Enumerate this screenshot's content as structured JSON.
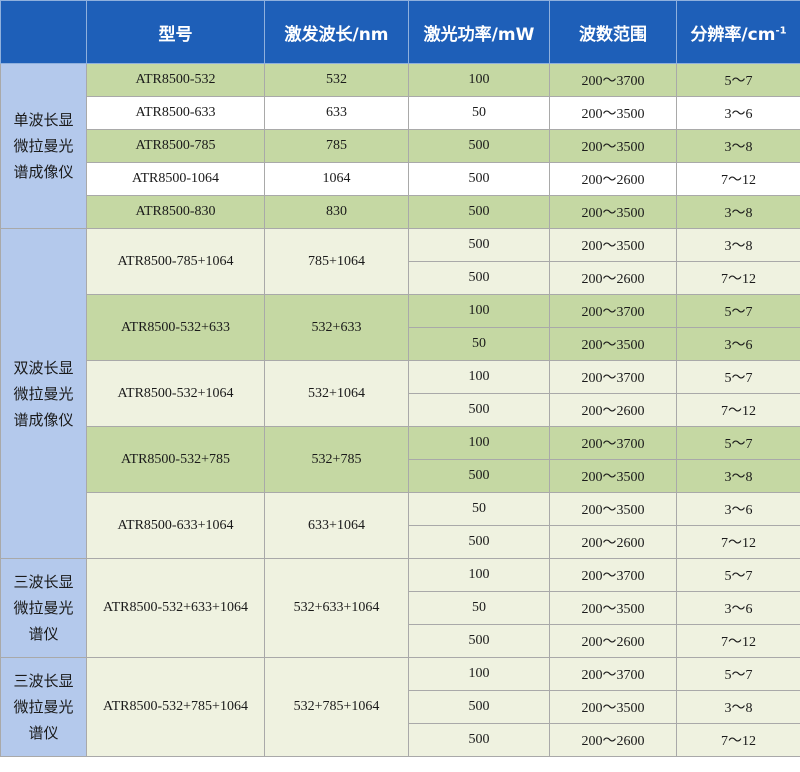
{
  "header": {
    "model": "型号",
    "wavelength": "激发波长/nm",
    "power": "激光功率/mW",
    "range": "波数范围",
    "resolution": "分辨率/cm",
    "resolution_sup": "-1"
  },
  "categories": {
    "single": "单波长显\n微拉曼光\n谱成像仪",
    "dual": "双波长显\n微拉曼光\n谱成像仪",
    "triple_a": "三波长显\n微拉曼光\n谱仪",
    "triple_b": "三波长显\n微拉曼光\n谱仪"
  },
  "single": [
    {
      "model": "ATR8500-532",
      "wl": "532",
      "power": "100",
      "range": "200～3700",
      "res": "5～7"
    },
    {
      "model": "ATR8500-633",
      "wl": "633",
      "power": "50",
      "range": "200～3500",
      "res": "3～6"
    },
    {
      "model": "ATR8500-785",
      "wl": "785",
      "power": "500",
      "range": "200～3500",
      "res": "3～8"
    },
    {
      "model": "ATR8500-1064",
      "wl": "1064",
      "power": "500",
      "range": "200～2600",
      "res": "7～12"
    },
    {
      "model": "ATR8500-830",
      "wl": "830",
      "power": "500",
      "range": "200～3500",
      "res": "3～8"
    }
  ],
  "dual": [
    {
      "model": "ATR8500-785+1064",
      "wl": "785+1064",
      "rows": [
        {
          "power": "500",
          "range": "200～3500",
          "res": "3～8"
        },
        {
          "power": "500",
          "range": "200～2600",
          "res": "7～12"
        }
      ]
    },
    {
      "model": "ATR8500-532+633",
      "wl": "532+633",
      "rows": [
        {
          "power": "100",
          "range": "200～3700",
          "res": "5～7"
        },
        {
          "power": "50",
          "range": "200～3500",
          "res": "3～6"
        }
      ]
    },
    {
      "model": "ATR8500-532+1064",
      "wl": "532+1064",
      "rows": [
        {
          "power": "100",
          "range": "200～3700",
          "res": "5～7"
        },
        {
          "power": "500",
          "range": "200～2600",
          "res": "7～12"
        }
      ]
    },
    {
      "model": "ATR8500-532+785",
      "wl": "532+785",
      "rows": [
        {
          "power": "100",
          "range": "200～3700",
          "res": "5～7"
        },
        {
          "power": "500",
          "range": "200～3500",
          "res": "3～8"
        }
      ]
    },
    {
      "model": "ATR8500-633+1064",
      "wl": "633+1064",
      "rows": [
        {
          "power": "50",
          "range": "200～3500",
          "res": "3～6"
        },
        {
          "power": "500",
          "range": "200～2600",
          "res": "7～12"
        }
      ]
    }
  ],
  "triple": [
    {
      "model": "ATR8500-532+633+1064",
      "wl": "532+633+1064",
      "rows": [
        {
          "power": "100",
          "range": "200～3700",
          "res": "5～7"
        },
        {
          "power": "50",
          "range": "200～3500",
          "res": "3～6"
        },
        {
          "power": "500",
          "range": "200～2600",
          "res": "7～12"
        }
      ]
    },
    {
      "model": "ATR8500-532+785+1064",
      "wl": "532+785+1064",
      "rows": [
        {
          "power": "100",
          "range": "200～3700",
          "res": "5～7"
        },
        {
          "power": "500",
          "range": "200～3500",
          "res": "3～8"
        },
        {
          "power": "500",
          "range": "200～2600",
          "res": "7～12"
        }
      ]
    }
  ],
  "colors": {
    "header_bg": "#1e5fb8",
    "category_bg": "#b4c9ec",
    "row_green": "#c5d8a3",
    "row_light": "#eff2e0",
    "row_white": "#ffffff"
  }
}
